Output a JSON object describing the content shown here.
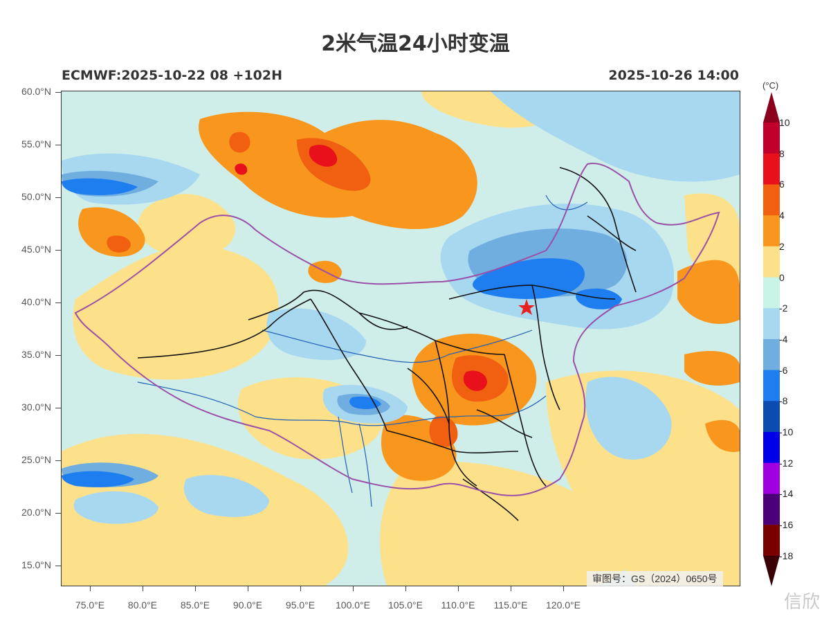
{
  "title": "2米气温24小时变温",
  "subtitle_left": "ECMWF:2025-10-22 08 +102H",
  "subtitle_right": "2025-10-26 14:00",
  "colorbar": {
    "unit": "(°C)",
    "labels": [
      "10",
      "8",
      "6",
      "4",
      "2",
      "0",
      "-2",
      "-4",
      "-6",
      "-8",
      "-10",
      "-12",
      "-14",
      "-16",
      "-18"
    ],
    "colors": [
      "#8b001c",
      "#c0002a",
      "#e8101a",
      "#f06010",
      "#f8961e",
      "#fce18a",
      "#c8f4e8",
      "#a8d8f0",
      "#70aee0",
      "#1e7ef0",
      "#0a4cb0",
      "#0000e8",
      "#a000e0",
      "#4b007a",
      "#7a0000",
      "#3a0008"
    ]
  },
  "map": {
    "y_labels": [
      "60.0°N",
      "55.0°N",
      "50.0°N",
      "45.0°N",
      "40.0°N",
      "35.0°N",
      "30.0°N",
      "25.0°N",
      "20.0°N",
      "15.0°N"
    ],
    "x_labels": [
      "75.0°E",
      "80.0°E",
      "85.0°E",
      "90.0°E",
      "95.0°E",
      "100.0°E",
      "105.0°E",
      "110.0°E",
      "115.0°E",
      "120.0°E"
    ],
    "review_number": "审图号：GS（2024）0650号",
    "colors": {
      "base": "#cfeee9",
      "warm1": "#fce18a",
      "warm2": "#f8961e",
      "warm3": "#f06010",
      "warm4": "#e8101a",
      "cool1": "#a8d8f0",
      "cool2": "#70aee0",
      "cool3": "#1e7ef0",
      "border_national": "#9a4fa8",
      "border_province": "#111111",
      "river": "#1f5fb8",
      "marker": "#e82020"
    }
  },
  "watermark": "信欣"
}
